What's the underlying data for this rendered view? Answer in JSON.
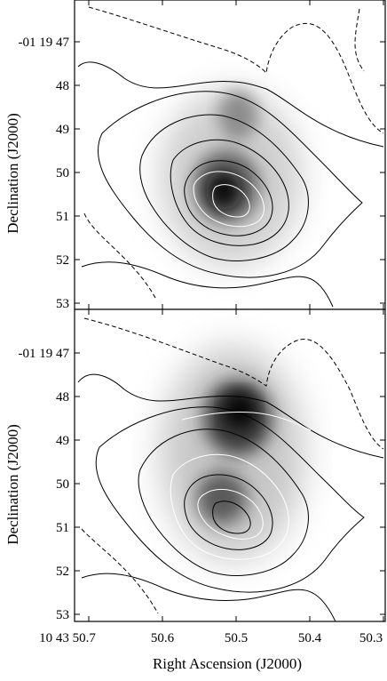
{
  "chart_data": [
    {
      "type": "heatmap",
      "panel": "top",
      "xlabel": "",
      "ylabel": "Declination (J2000)",
      "y_ticks": [
        "-01 19 47",
        "48",
        "49",
        "50",
        "51",
        "52",
        "53"
      ],
      "x_ticks": [],
      "grid": false,
      "colormap": "greyscale",
      "peaks": [
        {
          "ra": "50.52",
          "dec": "50.4",
          "intensity": 1.0
        },
        {
          "ra": "50.49",
          "dec": "48.7",
          "intensity": 0.35
        }
      ]
    },
    {
      "type": "heatmap",
      "panel": "bottom",
      "xlabel": "Right Ascension (J2000)",
      "ylabel": "Declination (J2000)",
      "y_ticks": [
        "-01 19 47",
        "48",
        "49",
        "50",
        "51",
        "52",
        "53"
      ],
      "x_ticks": [
        "10 43 50.7",
        "50.6",
        "50.5",
        "50.4",
        "50.3"
      ],
      "grid": false,
      "colormap": "greyscale",
      "peaks": [
        {
          "ra": "50.49",
          "dec": "48.4",
          "intensity": 1.0
        },
        {
          "ra": "50.52",
          "dec": "50.4",
          "intensity": 0.65
        }
      ]
    }
  ],
  "colors": {
    "contour": "#000000",
    "inner_contour": "#ffffff",
    "frame": "#000000",
    "background": "#ffffff"
  }
}
